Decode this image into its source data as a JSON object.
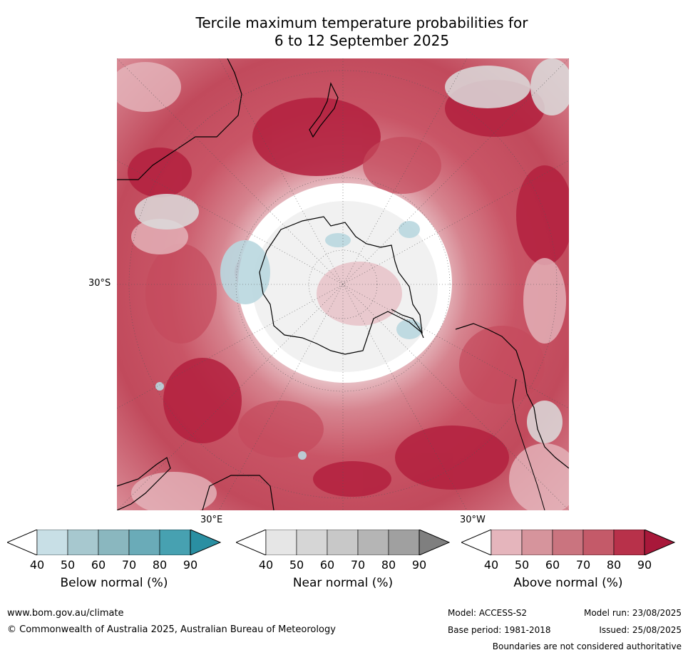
{
  "title_line1": "Tercile maximum temperature probabilities for",
  "title_line2": "6 to 12 September 2025",
  "map": {
    "projection": "south-polar-stereographic",
    "labels": {
      "lat_30s": "30°S",
      "lon_30e": "30°E",
      "lon_30w": "30°W"
    },
    "colors": {
      "ocean_white": "#ffffff",
      "above_light": "#e5b6bd",
      "above_mid": "#d6848f",
      "above_dark": "#c44a5c",
      "above_darkest": "#b3203e",
      "near_light": "#e6e6e6",
      "near_mid": "#c9c9c9",
      "below_light": "#c5dfe6",
      "below_mid": "#8fbfcb",
      "coast": "#000000"
    }
  },
  "colorbars": [
    {
      "label": "Below normal (%)",
      "ticks": [
        "40",
        "50",
        "60",
        "70",
        "80",
        "90"
      ],
      "colors": [
        "#ffffff",
        "#c8dfe6",
        "#a7c8cf",
        "#8ab7bf",
        "#6aabb8",
        "#47a1b1",
        "#2a8fa2"
      ]
    },
    {
      "label": "Near normal (%)",
      "ticks": [
        "40",
        "50",
        "60",
        "70",
        "80",
        "90"
      ],
      "colors": [
        "#ffffff",
        "#e6e6e6",
        "#d6d6d6",
        "#c8c8c8",
        "#b5b5b5",
        "#a0a0a0",
        "#7f7f7f"
      ]
    },
    {
      "label": "Above normal (%)",
      "ticks": [
        "40",
        "50",
        "60",
        "70",
        "80",
        "90"
      ],
      "colors": [
        "#ffffff",
        "#e5b5bc",
        "#d6949c",
        "#ca747f",
        "#c45a69",
        "#b8314a",
        "#a8183a"
      ]
    }
  ],
  "footer": {
    "url": "www.bom.gov.au/climate",
    "copyright": "© Commonwealth of Australia 2025, Australian Bureau of Meteorology",
    "model": "Model: ACCESS-S2",
    "model_run": "Model run: 23/08/2025",
    "base_period": "Base period: 1981-2018",
    "issued": "Issued: 25/08/2025",
    "disclaimer": "Boundaries are not considered authoritative"
  }
}
